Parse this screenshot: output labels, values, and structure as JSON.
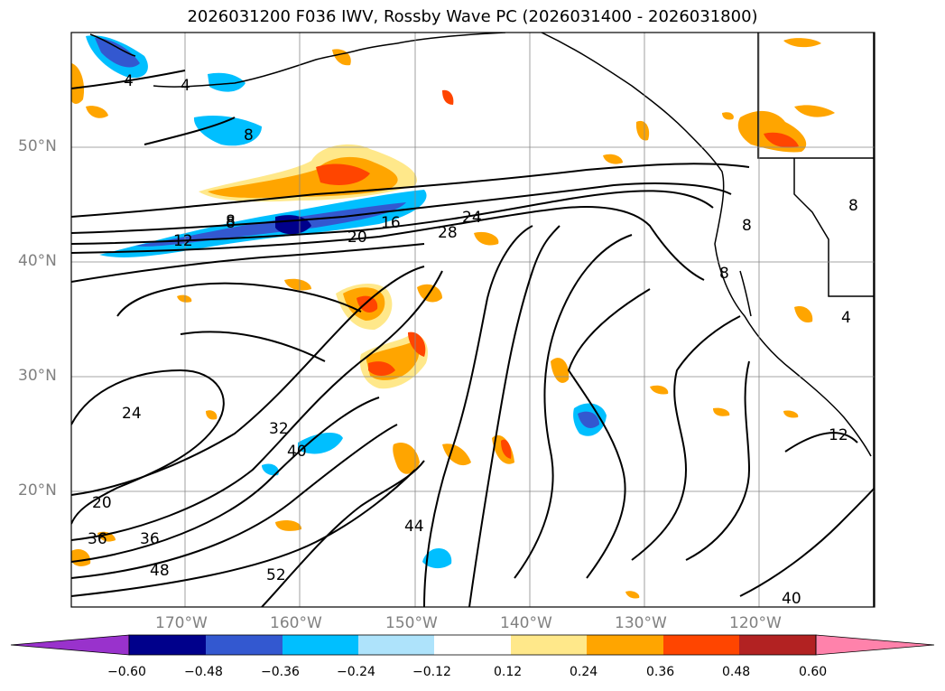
{
  "title": "2026031200 F036 IWV, Rossby Wave PC (2026031400 - 2026031800)",
  "axes": {
    "lat_labels": [
      "50°N",
      "40°N",
      "30°N",
      "20°N"
    ],
    "lon_labels": [
      "170°W",
      "160°W",
      "150°W",
      "140°W",
      "130°W",
      "120°W"
    ]
  },
  "contour_labels": [
    "4",
    "4",
    "8",
    "8",
    "12",
    "8",
    "16",
    "20",
    "24",
    "28",
    "8",
    "8",
    "8",
    "4",
    "24",
    "32",
    "40",
    "20",
    "36",
    "36",
    "48",
    "44",
    "52",
    "40",
    "12"
  ],
  "colorbar": {
    "ticks": [
      "−0.60",
      "−0.48",
      "−0.36",
      "−0.24",
      "−0.12",
      "0.12",
      "0.24",
      "0.36",
      "0.48",
      "0.60"
    ],
    "colors": [
      "#9932cc",
      "#00008b",
      "#3358d0",
      "#00bfff",
      "#aee3fb",
      "#ffffff",
      "#ffe88a",
      "#ffa500",
      "#ff4500",
      "#b22222",
      "#ff82ab"
    ]
  },
  "colors": {
    "land_outline": "#000000",
    "grid": "#888888",
    "contour": "#000000"
  }
}
